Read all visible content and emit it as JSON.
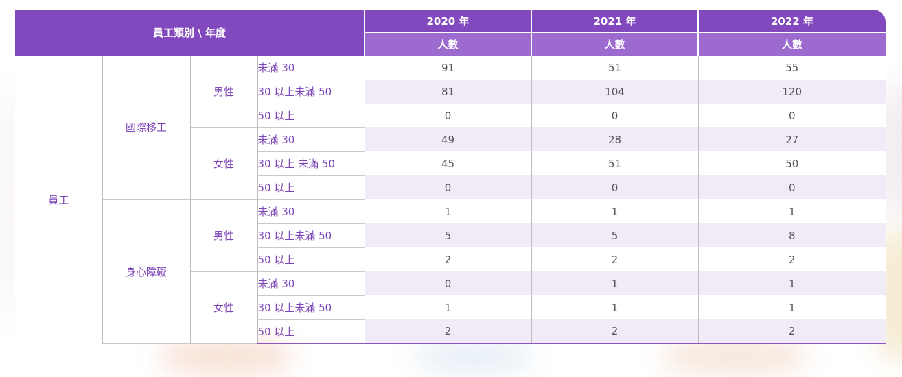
{
  "header": {
    "corner": "員工類別 \\ 年度",
    "years": [
      "2020 年",
      "2021 年",
      "2022 年"
    ],
    "sub": [
      "人數",
      "人數",
      "人數"
    ]
  },
  "body": {
    "employee": "員工",
    "groups": [
      {
        "label": "國際移工",
        "genders": [
          {
            "label": "男性",
            "rows": [
              {
                "age": "未滿 30",
                "values": [
                  "91",
                  "51",
                  "55"
                ]
              },
              {
                "age": "30 以上未滿 50",
                "values": [
                  "81",
                  "104",
                  "120"
                ]
              },
              {
                "age": "50 以上",
                "values": [
                  "0",
                  "0",
                  "0"
                ]
              }
            ]
          },
          {
            "label": "女性",
            "rows": [
              {
                "age": "未滿 30",
                "values": [
                  "49",
                  "28",
                  "27"
                ]
              },
              {
                "age": "30 以上 未滿 50",
                "values": [
                  "45",
                  "51",
                  "50"
                ]
              },
              {
                "age": "50 以上",
                "values": [
                  "0",
                  "0",
                  "0"
                ]
              }
            ]
          }
        ]
      },
      {
        "label": "身心障礙",
        "genders": [
          {
            "label": "男性",
            "rows": [
              {
                "age": "未滿 30",
                "values": [
                  "1",
                  "1",
                  "1"
                ]
              },
              {
                "age": "30 以上未滿 50",
                "values": [
                  "5",
                  "5",
                  "8"
                ]
              },
              {
                "age": "50 以上",
                "values": [
                  "2",
                  "2",
                  "2"
                ]
              }
            ]
          },
          {
            "label": "女性",
            "rows": [
              {
                "age": "未滿 30",
                "values": [
                  "0",
                  "1",
                  "1"
                ]
              },
              {
                "age": "30 以上未滿 50",
                "values": [
                  "1",
                  "1",
                  "1"
                ]
              },
              {
                "age": "50 以上",
                "values": [
                  "2",
                  "2",
                  "2"
                ]
              }
            ]
          }
        ]
      }
    ]
  },
  "colors": {
    "header": "#8248bd",
    "subheader": "#9d6ad0",
    "label_text": "#7e45b8",
    "shaded_row": "#f1ebf8"
  }
}
